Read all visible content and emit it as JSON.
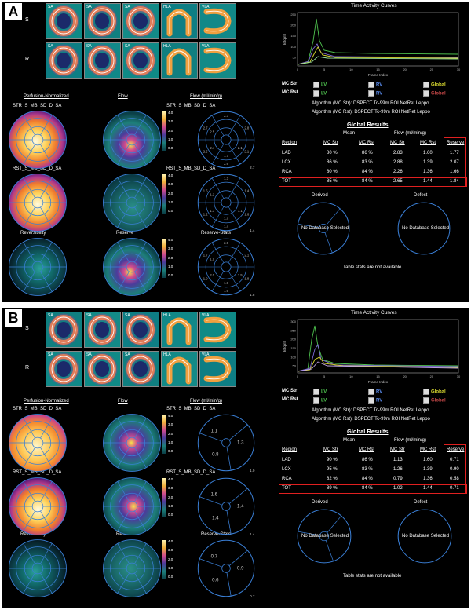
{
  "panels": [
    {
      "label": "A",
      "strip": {
        "rows": [
          "S",
          "R"
        ],
        "tiles": [
          "SA",
          "SA",
          "SA",
          "HLA",
          "VLA"
        ]
      },
      "left": {
        "col_titles": [
          "Perfusion-Normalized",
          "Flow",
          "Flow (ml/min/g)"
        ],
        "row1": {
          "left": "STR_S_MB_SD_D_SA",
          "right": "STR_S_MB_SD_D_SA",
          "scale": [
            "4.0",
            "3.0",
            "2.0",
            "1.0",
            "0.0"
          ],
          "stats": [
            "2.1",
            "2.6",
            "2.5",
            "2.7",
            "2.3",
            "2.8",
            "2.1",
            "1.7",
            "2.4",
            "2.5"
          ],
          "corner": "2.7"
        },
        "row2": {
          "left": "RST_S_MB_SD_D_SA",
          "right": "RST_S_MB_SD_D_SA",
          "scale": [
            "4.0",
            "3.0",
            "2.0",
            "1.0",
            "0.0"
          ],
          "stats": [
            "1.6",
            "1.4",
            "1.2",
            "1.5",
            "1.3",
            "1.4",
            "1.1",
            "1.4",
            "1.3",
            "1.2"
          ],
          "corner": "1.4"
        },
        "row3": {
          "labels": [
            "Reversibility",
            "Reserve",
            "Reserve-Stats"
          ],
          "scale": [
            "4.0",
            "3.0",
            "2.0",
            "1.0",
            "0.0"
          ],
          "stats": [
            "1.8",
            "1.6",
            "1.9",
            "1.7",
            "2.0",
            "2.1",
            "1.5",
            "1.8",
            "2.0",
            "1.9"
          ],
          "corner": "1.8"
        }
      },
      "tac": {
        "title": "Time Activity Curves",
        "ylabel": "kBq/ml",
        "xlabel": "Frame Index",
        "yticks": [
          "250",
          "200",
          "150",
          "100",
          "50"
        ],
        "xticks": [
          "0",
          "5",
          "10",
          "15",
          "20",
          "25",
          "30"
        ],
        "legend": [
          {
            "row": "MC Str",
            "items": [
              "LV",
              "RV",
              "Global"
            ]
          },
          {
            "row": "MC Rst",
            "items": [
              "LV",
              "RV",
              "Global"
            ]
          }
        ]
      },
      "algorithm": [
        "Algorithm (MC Str):  DSPECT Tc-99m ROI NetRet Leppo",
        "Algorithm (MC Rst):  DSPECT Tc-99m ROI NetRet Leppo"
      ],
      "global": {
        "title": "Global Results",
        "group_headers": [
          "Mean",
          "Flow (ml/min/g)"
        ],
        "headers": [
          "Region",
          "MC Str",
          "MC Rst",
          "MC Str",
          "MC Rst",
          "Reserve"
        ],
        "rows": [
          [
            "LAD",
            "80 %",
            "86 %",
            "2.83",
            "1.60",
            "1.77"
          ],
          [
            "LCX",
            "86 %",
            "83 %",
            "2.88",
            "1.39",
            "2.07"
          ],
          [
            "RCA",
            "80 %",
            "84 %",
            "2.26",
            "1.36",
            "1.66"
          ],
          [
            "TOT",
            "85 %",
            "84 %",
            "2.65",
            "1.44",
            "1.84"
          ]
        ]
      },
      "derived": "Derived",
      "defect": "Defect",
      "no_db": "No Database Selected",
      "footer": "Table stats are not available"
    },
    {
      "label": "B",
      "strip": {
        "rows": [
          "S",
          "R"
        ],
        "tiles": [
          "SA",
          "SA",
          "SA",
          "HLA",
          "VLA"
        ]
      },
      "left": {
        "col_titles": [
          "Perfusion-Normalized",
          "Flow",
          "Flow (ml/min/g)"
        ],
        "row1": {
          "left": "STR_S_MB_SD_D_SA",
          "right": "STR_S_MB_SD_D_SA",
          "scale": [
            "4.0",
            "3.0",
            "2.0",
            "1.0",
            "0.0"
          ],
          "stats": [
            "1.1",
            "1.3",
            "0.8"
          ],
          "corner": "1.0"
        },
        "row2": {
          "left": "RST_S_MB_SD_D_SA",
          "right": "RST_S_MB_SD_D_SA",
          "scale": [
            "4.0",
            "3.0",
            "2.0",
            "1.0",
            "0.0"
          ],
          "stats": [
            "1.6",
            "1.4",
            "1.4"
          ],
          "corner": "1.4"
        },
        "row3": {
          "labels": [
            "Reversibility",
            "Reserve",
            "Reserve-Stats"
          ],
          "scale": [
            "4.0",
            "3.0",
            "2.0",
            "1.0",
            "0.0"
          ],
          "stats": [
            "0.7",
            "0.9",
            "0.6"
          ],
          "corner": "0.7"
        }
      },
      "tac": {
        "title": "Time Activity Curves",
        "ylabel": "kBq/ml",
        "xlabel": "Frame Index",
        "yticks": [
          "300",
          "250",
          "200",
          "150",
          "100",
          "50"
        ],
        "xticks": [
          "0",
          "5",
          "10",
          "15",
          "20",
          "25",
          "30"
        ],
        "legend": [
          {
            "row": "MC Str",
            "items": [
              "LV",
              "RV",
              "Global"
            ]
          },
          {
            "row": "MC Rst",
            "items": [
              "LV",
              "RV",
              "Global"
            ]
          }
        ]
      },
      "algorithm": [
        "Algorithm (MC Str):  DSPECT Tc-99m ROI NetRet Leppo",
        "Algorithm (MC Rst):  DSPECT Tc-99m ROI NetRet Leppo"
      ],
      "global": {
        "title": "Global Results",
        "group_headers": [
          "Mean",
          "Flow (ml/min/g)"
        ],
        "headers": [
          "Region",
          "MC Str",
          "MC Rst",
          "MC Str",
          "MC Rst",
          "Reserve"
        ],
        "rows": [
          [
            "LAD",
            "90 %",
            "86 %",
            "1.13",
            "1.60",
            "0.71"
          ],
          [
            "LCX",
            "95 %",
            "83 %",
            "1.26",
            "1.39",
            "0.90"
          ],
          [
            "RCA",
            "82 %",
            "84 %",
            "0.79",
            "1.36",
            "0.58"
          ],
          [
            "TOT",
            "89 %",
            "84 %",
            "1.02",
            "1.44",
            "0.71"
          ]
        ]
      },
      "derived": "Derived",
      "defect": "Defect",
      "no_db": "No Database Selected",
      "footer": "Table stats are not available"
    }
  ]
}
